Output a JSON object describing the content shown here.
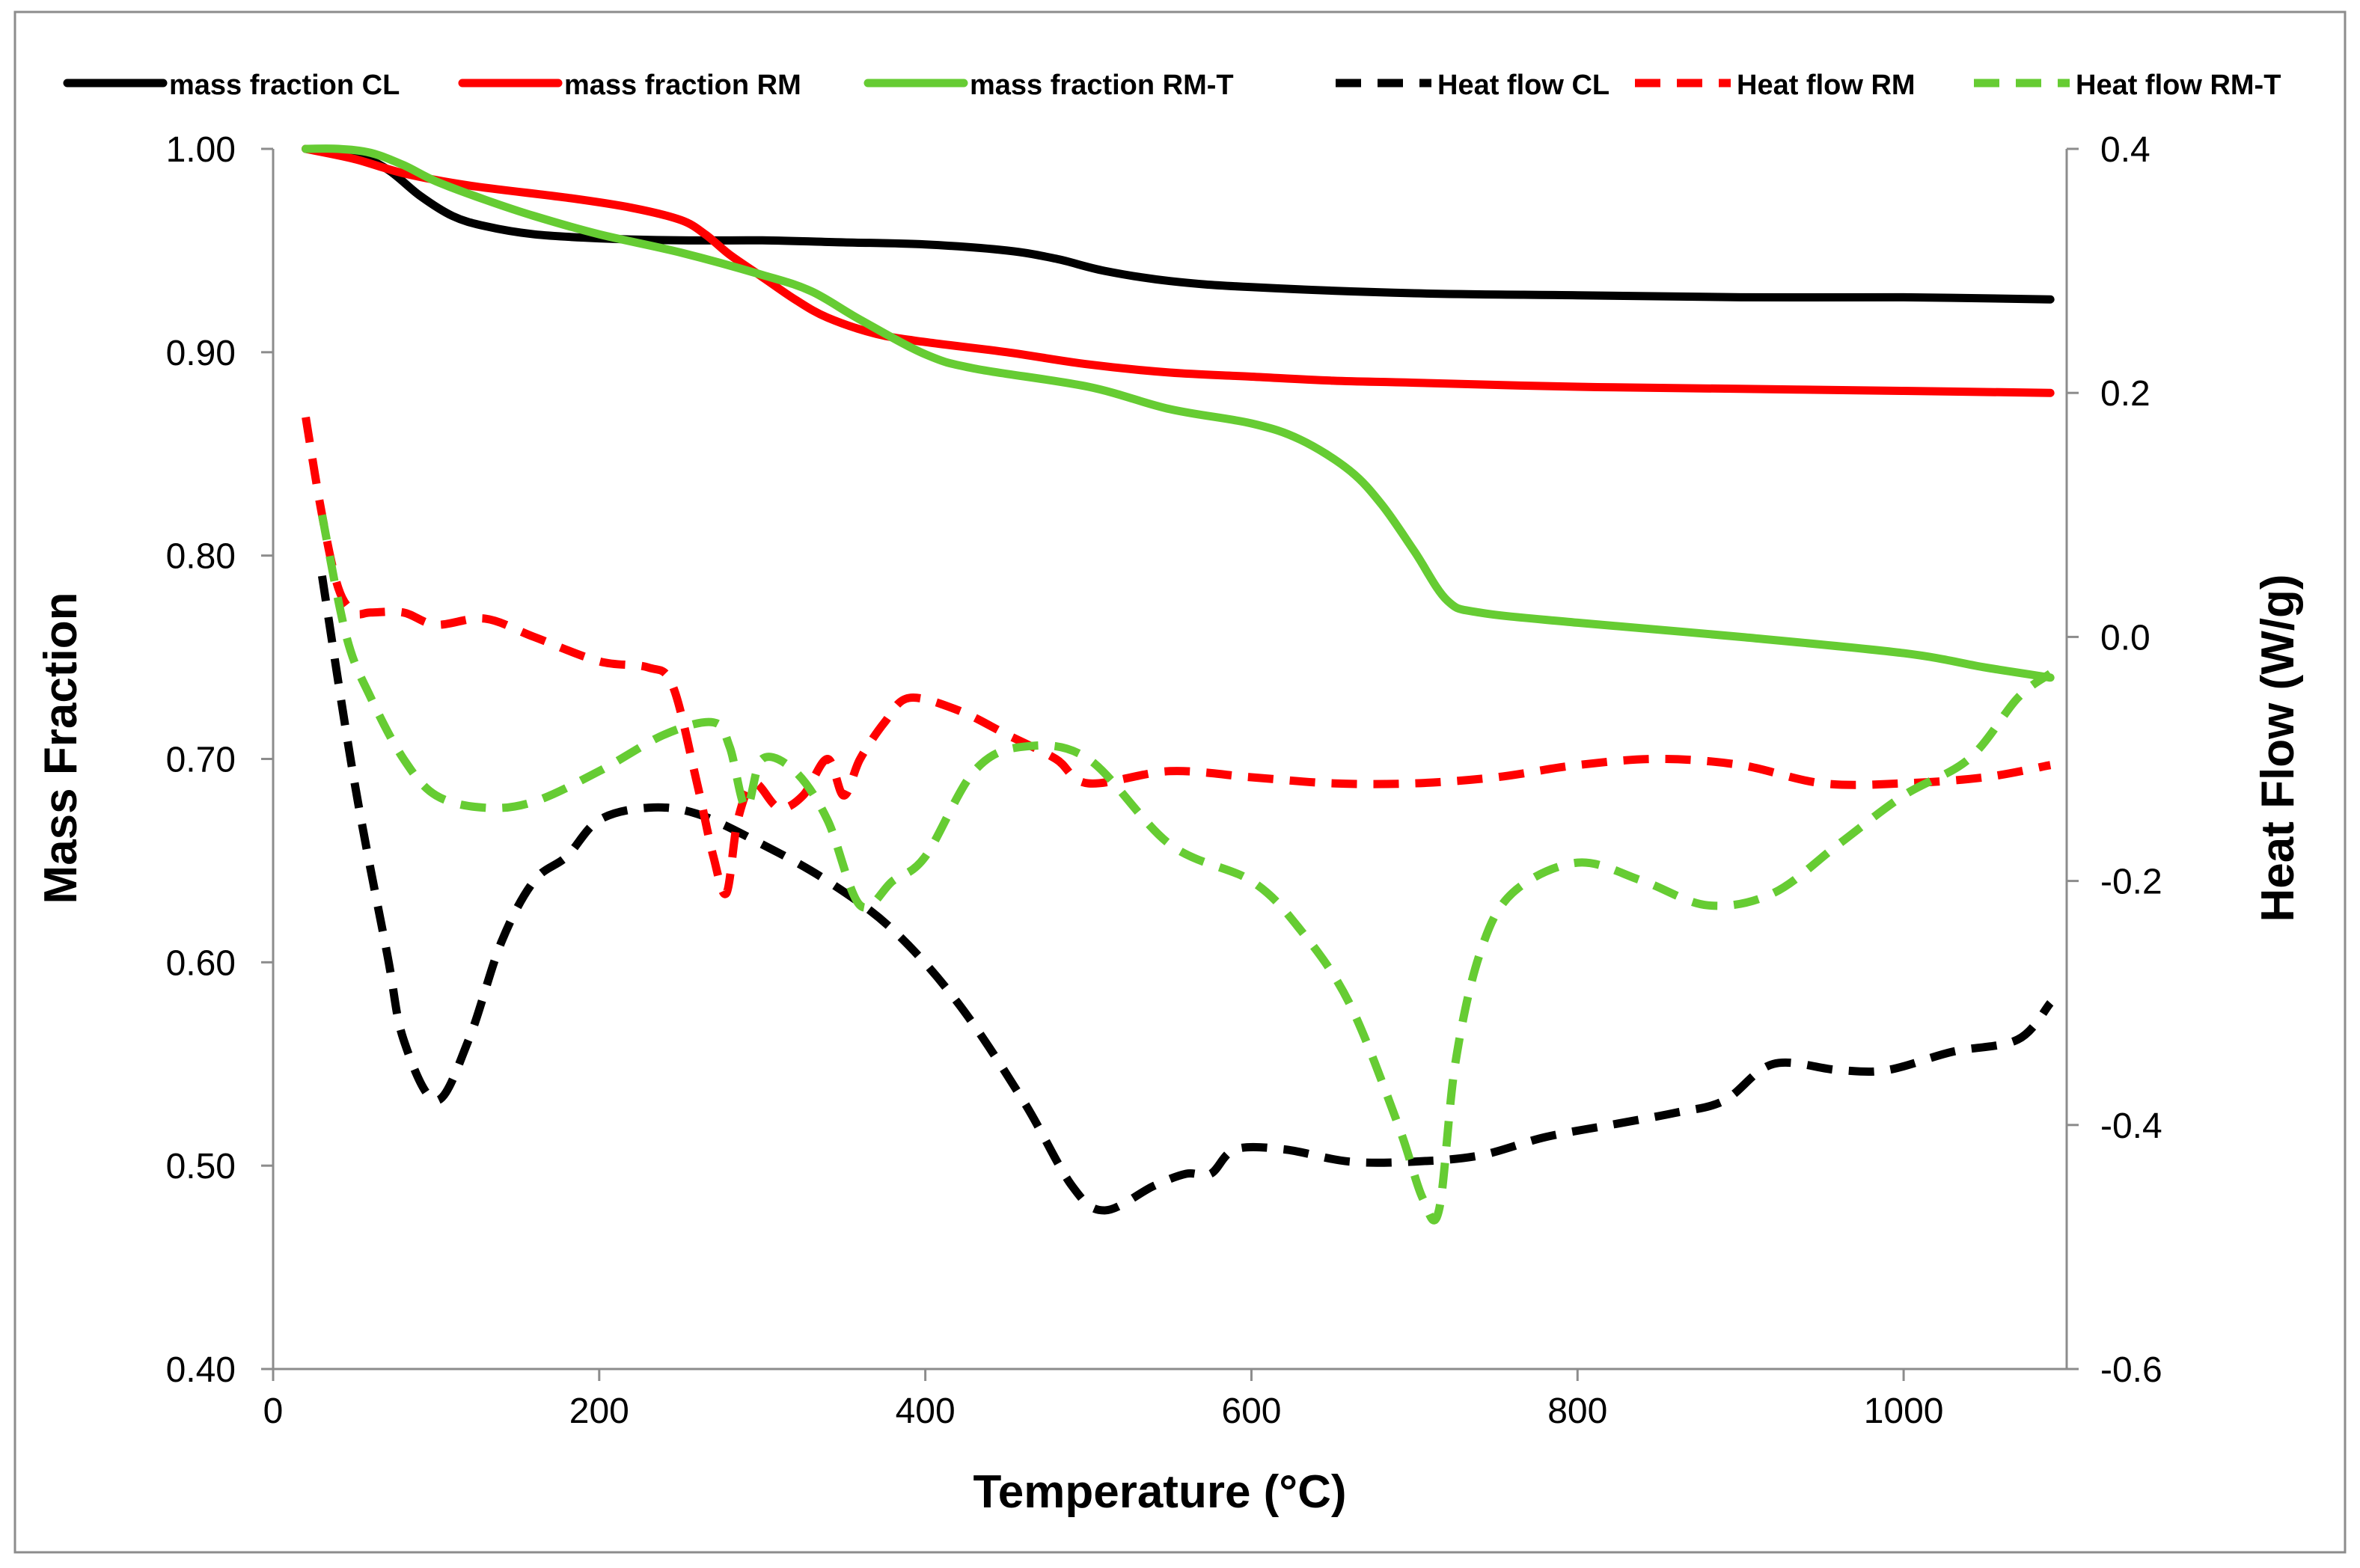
{
  "chart_data": {
    "type": "line",
    "title": "",
    "xlabel": "Temperature (°C)",
    "ylabel_left": "Mass Fraction",
    "ylabel_right": "Heat Flow (W/g)",
    "xlim": [
      0,
      1100
    ],
    "ylim_left": [
      0.4,
      1.0
    ],
    "ylim_right": [
      -0.6,
      0.4
    ],
    "x_ticks": [
      {
        "value": 0,
        "label": "0"
      },
      {
        "value": 200,
        "label": "200"
      },
      {
        "value": 400,
        "label": "400"
      },
      {
        "value": 600,
        "label": "600"
      },
      {
        "value": 800,
        "label": "800"
      },
      {
        "value": 1000,
        "label": "1000"
      }
    ],
    "y_left_ticks": [
      {
        "value": 0.4,
        "label": "0.40"
      },
      {
        "value": 0.5,
        "label": "0.50"
      },
      {
        "value": 0.6,
        "label": "0.60"
      },
      {
        "value": 0.7,
        "label": "0.70"
      },
      {
        "value": 0.8,
        "label": "0.80"
      },
      {
        "value": 0.9,
        "label": "0.90"
      },
      {
        "value": 1.0,
        "label": "1.00"
      }
    ],
    "y_right_ticks": [
      {
        "value": 0.4,
        "label": "0.4"
      },
      {
        "value": 0.2,
        "label": "0.2"
      },
      {
        "value": 0.0,
        "label": "0.0"
      },
      {
        "value": -0.2,
        "label": "-0.2"
      },
      {
        "value": -0.4,
        "label": "-0.4"
      },
      {
        "value": -0.6,
        "label": "-0.6"
      }
    ],
    "grid": false,
    "legend_position": "top",
    "series": [
      {
        "name": "mass fraction CL",
        "axis": "left",
        "color": "#000000",
        "dash": "solid",
        "x": [
          20,
          50,
          70,
          90,
          110,
          130,
          160,
          200,
          250,
          300,
          350,
          400,
          450,
          480,
          510,
          550,
          600,
          700,
          800,
          900,
          1000,
          1090
        ],
        "values": [
          1.0,
          0.997,
          0.99,
          0.977,
          0.967,
          0.962,
          0.958,
          0.956,
          0.955,
          0.955,
          0.954,
          0.953,
          0.95,
          0.946,
          0.94,
          0.935,
          0.932,
          0.929,
          0.928,
          0.927,
          0.927,
          0.926
        ]
      },
      {
        "name": "mass fraction RM",
        "axis": "left",
        "color": "#ff0000",
        "dash": "solid",
        "x": [
          20,
          50,
          80,
          120,
          180,
          220,
          250,
          265,
          280,
          300,
          320,
          340,
          370,
          400,
          450,
          500,
          550,
          600,
          650,
          700,
          800,
          900,
          1000,
          1090
        ],
        "values": [
          1.0,
          0.995,
          0.988,
          0.982,
          0.976,
          0.971,
          0.965,
          0.958,
          0.948,
          0.937,
          0.926,
          0.917,
          0.909,
          0.905,
          0.9,
          0.894,
          0.89,
          0.888,
          0.886,
          0.885,
          0.883,
          0.882,
          0.881,
          0.88
        ]
      },
      {
        "name": "mass fraction RM-T",
        "axis": "left",
        "color": "#66cc33",
        "dash": "solid",
        "x": [
          20,
          40,
          60,
          80,
          100,
          130,
          160,
          200,
          250,
          300,
          330,
          360,
          400,
          430,
          500,
          550,
          600,
          630,
          660,
          680,
          700,
          720,
          740,
          800,
          900,
          1000,
          1050,
          1090
        ],
        "values": [
          1.0,
          1.0,
          0.998,
          0.992,
          0.984,
          0.975,
          0.967,
          0.958,
          0.949,
          0.938,
          0.93,
          0.916,
          0.899,
          0.892,
          0.883,
          0.872,
          0.865,
          0.857,
          0.842,
          0.825,
          0.802,
          0.778,
          0.772,
          0.767,
          0.76,
          0.752,
          0.745,
          0.74
        ]
      },
      {
        "name": "Heat flow CL",
        "axis": "right",
        "color": "#000000",
        "dash": "dashed",
        "x": [
          30,
          50,
          70,
          80,
          100,
          120,
          140,
          160,
          180,
          200,
          230,
          260,
          300,
          340,
          380,
          420,
          460,
          490,
          510,
          540,
          560,
          575,
          590,
          620,
          660,
          700,
          740,
          780,
          820,
          860,
          890,
          920,
          960,
          990,
          1030,
          1070,
          1090
        ],
        "values": [
          0.05,
          -0.12,
          -0.26,
          -0.33,
          -0.38,
          -0.33,
          -0.25,
          -0.2,
          -0.18,
          -0.15,
          -0.14,
          -0.145,
          -0.17,
          -0.2,
          -0.24,
          -0.3,
          -0.38,
          -0.45,
          -0.47,
          -0.45,
          -0.44,
          -0.44,
          -0.42,
          -0.42,
          -0.43,
          -0.43,
          -0.425,
          -0.41,
          -0.4,
          -0.39,
          -0.38,
          -0.35,
          -0.355,
          -0.355,
          -0.34,
          -0.33,
          -0.3
        ]
      },
      {
        "name": "Heat flow RM",
        "axis": "right",
        "color": "#ff0000",
        "dash": "dashed",
        "x": [
          20,
          30,
          40,
          50,
          60,
          80,
          100,
          130,
          160,
          200,
          230,
          245,
          260,
          270,
          278,
          285,
          295,
          310,
          325,
          340,
          350,
          360,
          375,
          390,
          420,
          450,
          480,
          500,
          550,
          600,
          650,
          700,
          750,
          800,
          850,
          900,
          950,
          1000,
          1050,
          1090
        ],
        "values": [
          0.18,
          0.1,
          0.04,
          0.02,
          0.02,
          0.02,
          0.01,
          0.015,
          0.0,
          -0.02,
          -0.025,
          -0.04,
          -0.12,
          -0.18,
          -0.21,
          -0.15,
          -0.12,
          -0.14,
          -0.13,
          -0.1,
          -0.13,
          -0.1,
          -0.07,
          -0.05,
          -0.06,
          -0.08,
          -0.1,
          -0.12,
          -0.11,
          -0.115,
          -0.12,
          -0.12,
          -0.115,
          -0.105,
          -0.1,
          -0.105,
          -0.12,
          -0.12,
          -0.115,
          -0.105
        ]
      },
      {
        "name": "Heat flow RM-T",
        "axis": "right",
        "color": "#66cc33",
        "dash": "dashed",
        "x": [
          30,
          45,
          60,
          80,
          100,
          130,
          160,
          200,
          240,
          270,
          280,
          290,
          300,
          320,
          340,
          360,
          380,
          400,
          430,
          460,
          500,
          550,
          600,
          630,
          660,
          690,
          705,
          715,
          725,
          740,
          760,
          800,
          840,
          880,
          920,
          960,
          1000,
          1040,
          1070,
          1090
        ],
        "values": [
          0.1,
          0.0,
          -0.05,
          -0.1,
          -0.13,
          -0.14,
          -0.135,
          -0.11,
          -0.08,
          -0.07,
          -0.09,
          -0.14,
          -0.1,
          -0.11,
          -0.15,
          -0.22,
          -0.2,
          -0.18,
          -0.11,
          -0.09,
          -0.1,
          -0.17,
          -0.2,
          -0.24,
          -0.3,
          -0.4,
          -0.46,
          -0.47,
          -0.35,
          -0.26,
          -0.21,
          -0.185,
          -0.2,
          -0.22,
          -0.21,
          -0.17,
          -0.13,
          -0.1,
          -0.05,
          -0.03
        ]
      }
    ]
  }
}
